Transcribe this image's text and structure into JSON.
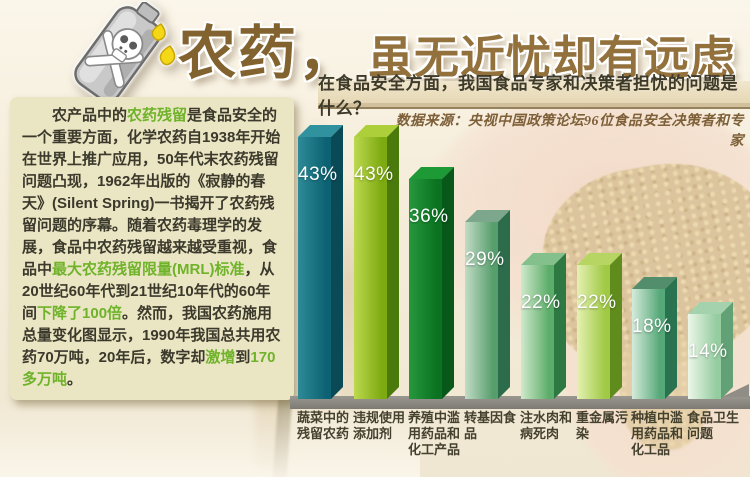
{
  "header": {
    "title_emphasis": "农药，",
    "title_rest": "虽无近忧却有远虑",
    "icon": "poison-bottle"
  },
  "intro": {
    "segments": [
      {
        "text": "农产品中的",
        "highlight": false
      },
      {
        "text": "农药残留",
        "highlight": true
      },
      {
        "text": "是食品安全的一个重要方面，化学农药自1938年开始在世界上推广应用，50年代末农药残留问题凸现，1962年出版的《寂静的春天》(Silent Spring)一书揭开了农药残留问题的序幕。随着农药毒理学的发展，食品中农药残留越来越受重视，食品中",
        "highlight": false
      },
      {
        "text": "最大农药残留限量(MRL)标准",
        "highlight": true
      },
      {
        "text": "，从20世纪60年代到21世纪10年代的60年间",
        "highlight": false
      },
      {
        "text": "下降了100倍",
        "highlight": true
      },
      {
        "text": "。然而，我国农药施用总量变化图显示，1990年我国总共用农药70万吨，20年后，数字却",
        "highlight": false
      },
      {
        "text": "激增",
        "highlight": true
      },
      {
        "text": "到",
        "highlight": false
      },
      {
        "text": "170多万吨",
        "highlight": true
      },
      {
        "text": "。",
        "highlight": false
      }
    ]
  },
  "survey": {
    "question": "在食品安全方面，我国食品专家和决策者担忧的问题是什么？",
    "source": "数据来源：央视中国政策论坛96位食品安全决策者和专家"
  },
  "chart_data": {
    "type": "bar",
    "title": "在食品安全方面，我国食品专家和决策者担忧的问题是什么？",
    "source": "数据来源：央视中国政策论坛96位食品安全决策者和专家",
    "categories": [
      "蔬菜中的残留农药",
      "违规使用添加剂",
      "养殖中滥用药品和化工产品",
      "转基因食品",
      "注水肉和病死肉",
      "重金属污染",
      "种植中滥用药品和化工品",
      "食品卫生问题"
    ],
    "values": [
      43,
      43,
      36,
      29,
      22,
      22,
      18,
      14
    ],
    "value_labels": [
      "43%",
      "43%",
      "36%",
      "29%",
      "22%",
      "22%",
      "18%",
      "14%"
    ],
    "unit": "%",
    "ylim": [
      0,
      50
    ],
    "grid": false,
    "legend": false,
    "style": "pseudo-3d-bars-on-gray-floor",
    "bar_colors": [
      {
        "front_light": "#2e8b98",
        "front_dark": "#0c6272",
        "side": "#0a4a57",
        "top": "#2f929e"
      },
      {
        "front_light": "#bcd94f",
        "front_dark": "#7daa10",
        "side": "#4a7a0c",
        "top": "#accf3a"
      },
      {
        "front_light": "#27983e",
        "front_dark": "#0a7220",
        "side": "#075819",
        "top": "#1d9a35"
      },
      {
        "front_light": "#c2dcc6",
        "front_dark": "#569e6c",
        "side": "#2c6c4a",
        "top": "#7da78c"
      },
      {
        "front_light": "#cfe9cb",
        "front_dark": "#5cad69",
        "side": "#2e7843",
        "top": "#84c08c"
      },
      {
        "front_light": "#e4f1b2",
        "front_dark": "#a0c945",
        "side": "#5f8c1c",
        "top": "#b7d563"
      },
      {
        "front_light": "#d5ebdb",
        "front_dark": "#55a878",
        "side": "#2a7350",
        "top": "#538e6c"
      },
      {
        "front_light": "#ecf7e8",
        "front_dark": "#95cda1",
        "side": "#61a175",
        "top": "#a3d2ad"
      }
    ],
    "floor_color": "#8a8780",
    "value_label_color": "#ffffff",
    "category_label_color": "#45412f"
  },
  "colors": {
    "title_gold": "#8d6c38",
    "highlight_green": "#6fb32a",
    "panel_bg": "#eae5c2",
    "page_bg": "#f5edda"
  }
}
